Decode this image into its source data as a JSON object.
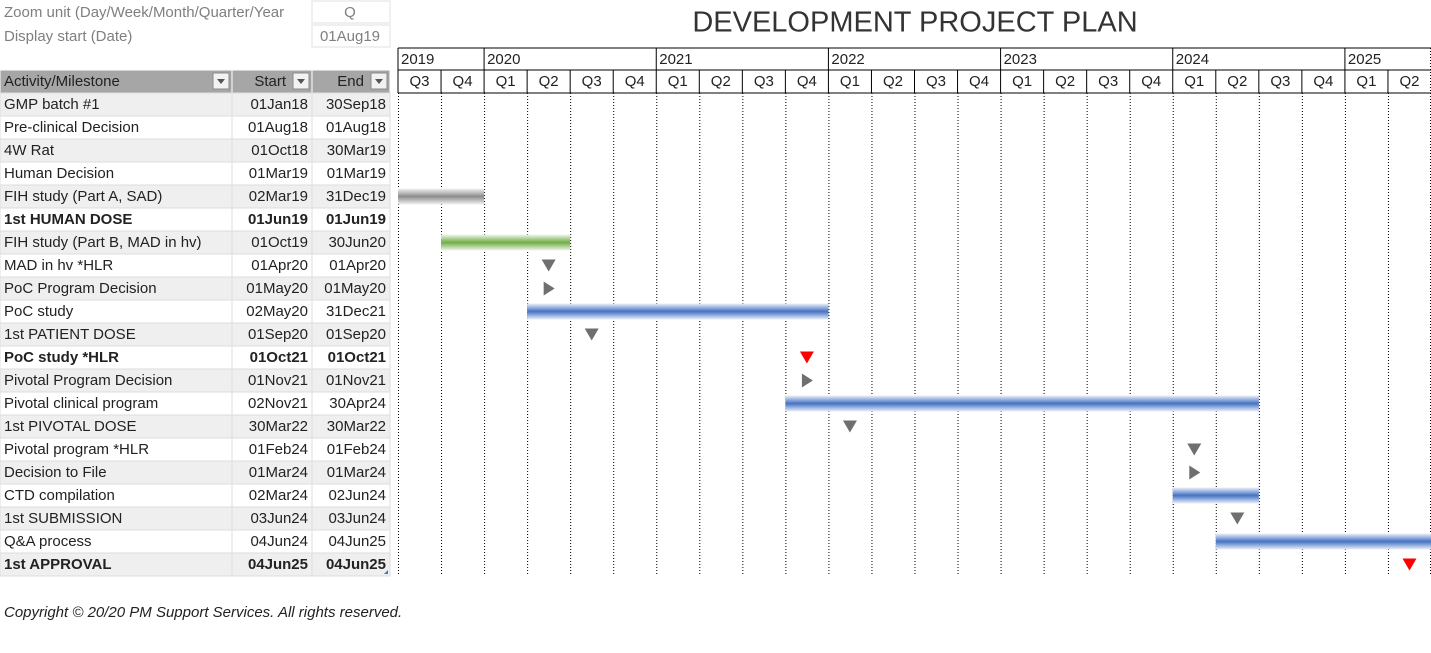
{
  "title": "DEVELOPMENT PROJECT PLAN",
  "settings": [
    {
      "label": "Zoom unit (Day/Week/Month/Quarter/Year",
      "value": "Q"
    },
    {
      "label": "Display start (Date)",
      "value": "01Aug19"
    }
  ],
  "table": {
    "header": [
      "Activity/Milestone",
      "Start",
      "End"
    ],
    "rows": [
      {
        "activity": "GMP batch #1",
        "start": "01Jan18",
        "end": "30Sep18"
      },
      {
        "activity": "Pre-clinical Decision",
        "start": "01Aug18",
        "end": "01Aug18"
      },
      {
        "activity": "4W Rat",
        "start": "01Oct18",
        "end": "30Mar19"
      },
      {
        "activity": "Human Decision",
        "start": "01Mar19",
        "end": "01Mar19"
      },
      {
        "activity": "FIH study (Part A, SAD)",
        "start": "02Mar19",
        "end": "31Dec19",
        "color": "#8c8c8c"
      },
      {
        "activity": "1st HUMAN DOSE",
        "start": "01Jun19",
        "end": "01Jun19",
        "bold": true,
        "marker": "down",
        "color": "#ff0000"
      },
      {
        "activity": "FIH study (Part B, MAD in hv)",
        "start": "01Oct19",
        "end": "30Jun20",
        "color": "#70ad47"
      },
      {
        "activity": "MAD in hv *HLR",
        "start": "01Apr20",
        "end": "01Apr20",
        "marker": "down",
        "color": "#6f6f6f"
      },
      {
        "activity": "PoC Program Decision",
        "start": "01May20",
        "end": "01May20",
        "marker": "right",
        "color": "#6f6f6f"
      },
      {
        "activity": "PoC study",
        "start": "02May20",
        "end": "31Dec21",
        "color": "#4472c4"
      },
      {
        "activity": "1st PATIENT DOSE",
        "start": "01Sep20",
        "end": "01Sep20",
        "marker": "down",
        "color": "#6f6f6f"
      },
      {
        "activity": "PoC study *HLR",
        "start": "01Oct21",
        "end": "01Oct21",
        "bold": true,
        "marker": "down",
        "color": "#ff0000"
      },
      {
        "activity": "Pivotal Program Decision",
        "start": "01Nov21",
        "end": "01Nov21",
        "marker": "right",
        "color": "#6f6f6f"
      },
      {
        "activity": "Pivotal clinical program",
        "start": "02Nov21",
        "end": "30Apr24",
        "color": "#4472c4"
      },
      {
        "activity": "1st PIVOTAL DOSE",
        "start": "30Mar22",
        "end": "30Mar22",
        "marker": "down",
        "color": "#6f6f6f"
      },
      {
        "activity": "Pivotal program *HLR",
        "start": "01Feb24",
        "end": "01Feb24",
        "marker": "down",
        "color": "#6f6f6f"
      },
      {
        "activity": "Decision to File",
        "start": "01Mar24",
        "end": "01Mar24",
        "marker": "right",
        "color": "#6f6f6f"
      },
      {
        "activity": "CTD compilation",
        "start": "02Mar24",
        "end": "02Jun24",
        "color": "#4472c4"
      },
      {
        "activity": "1st SUBMISSION",
        "start": "03Jun24",
        "end": "03Jun24",
        "marker": "down",
        "color": "#6f6f6f"
      },
      {
        "activity": "Q&A process",
        "start": "04Jun24",
        "end": "04Jun25",
        "color": "#4472c4"
      },
      {
        "activity": "1st APPROVAL",
        "start": "04Jun25",
        "end": "04Jun25",
        "bold": true,
        "marker": "down",
        "color": "#ff0000"
      }
    ]
  },
  "timeline": {
    "years": [
      "2019",
      "2020",
      "2021",
      "2022",
      "2023",
      "2024",
      "2025"
    ],
    "quarters": [
      "Q3",
      "Q4",
      "Q1",
      "Q2",
      "Q3",
      "Q4",
      "Q1",
      "Q2",
      "Q3",
      "Q4",
      "Q1",
      "Q2",
      "Q3",
      "Q4",
      "Q1",
      "Q2",
      "Q3",
      "Q4",
      "Q1",
      "Q2",
      "Q3",
      "Q4",
      "Q1",
      "Q2"
    ]
  },
  "footer": "Copyright © 20/20 PM Support Services. All rights reserved."
}
